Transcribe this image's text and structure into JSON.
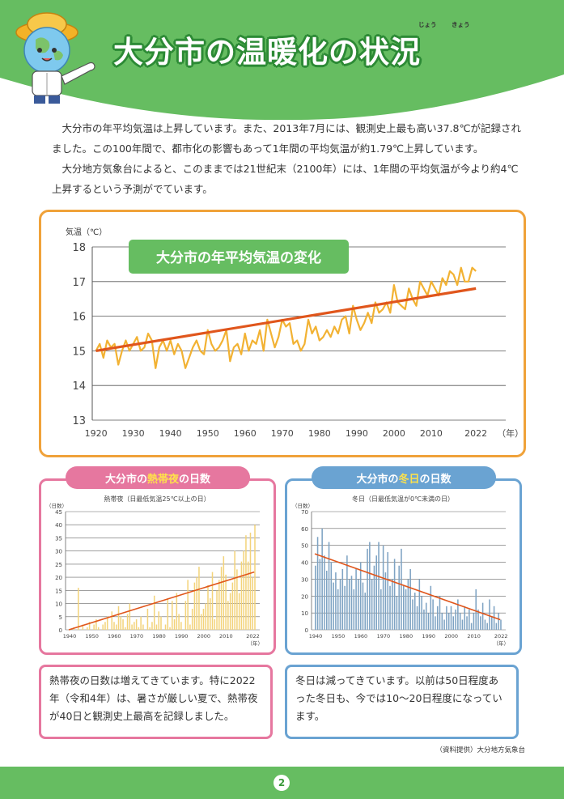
{
  "header": {
    "title": "大分市の温暖化の状況",
    "ruby_jou": "じょう",
    "ruby_kyou": "きょう"
  },
  "intro": {
    "p1": "大分市の年平均気温は上昇しています。また、2013年7月には、観測史上最も高い37.8℃が記録されました。この100年間で、都市化の影響もあって1年間の平均気温が約1.79℃上昇しています。",
    "p2": "大分地方気象台によると、このままでは21世紀末（2100年）には、1年間の平均気温が今より約4℃上昇するという予測がでています。"
  },
  "colors": {
    "green": "#66bd61",
    "orange": "#f0a23a",
    "trend": "#e0561c",
    "pink": "#e6779f",
    "blue": "#6aa3d2",
    "bar_yellow": "#f3d37a",
    "bar_blue": "#7ea3c3"
  },
  "chart_data": [
    {
      "type": "line",
      "title": "大分市の年平均気温の変化",
      "ylabel": "気温（℃）",
      "xunit": "（年）",
      "ylim": [
        13,
        18
      ],
      "yticks": [
        "18",
        "17",
        "16",
        "15",
        "14",
        "13"
      ],
      "xticks": [
        "1920",
        "1930",
        "1940",
        "1950",
        "1960",
        "1970",
        "1980",
        "1990",
        "2000",
        "2010",
        "2022"
      ],
      "x": [
        1920,
        1921,
        1922,
        1923,
        1924,
        1925,
        1926,
        1927,
        1928,
        1929,
        1930,
        1931,
        1932,
        1933,
        1934,
        1935,
        1936,
        1937,
        1938,
        1939,
        1940,
        1941,
        1942,
        1943,
        1944,
        1945,
        1946,
        1947,
        1948,
        1949,
        1950,
        1951,
        1952,
        1953,
        1954,
        1955,
        1956,
        1957,
        1958,
        1959,
        1960,
        1961,
        1962,
        1963,
        1964,
        1965,
        1966,
        1967,
        1968,
        1969,
        1970,
        1971,
        1972,
        1973,
        1974,
        1975,
        1976,
        1977,
        1978,
        1979,
        1980,
        1981,
        1982,
        1983,
        1984,
        1985,
        1986,
        1987,
        1988,
        1989,
        1990,
        1991,
        1992,
        1993,
        1994,
        1995,
        1996,
        1997,
        1998,
        1999,
        2000,
        2001,
        2002,
        2003,
        2004,
        2005,
        2006,
        2007,
        2008,
        2009,
        2010,
        2011,
        2012,
        2013,
        2014,
        2015,
        2016,
        2017,
        2018,
        2019,
        2020,
        2021,
        2022
      ],
      "y": [
        15.0,
        15.2,
        14.8,
        15.3,
        15.1,
        15.2,
        14.6,
        15.0,
        15.3,
        15.0,
        15.2,
        15.4,
        15.0,
        15.1,
        15.5,
        15.3,
        14.5,
        15.1,
        15.3,
        15.0,
        15.3,
        14.9,
        15.2,
        15.0,
        14.5,
        14.8,
        15.1,
        15.3,
        15.0,
        14.9,
        15.6,
        15.2,
        15.0,
        15.1,
        15.3,
        15.6,
        14.7,
        15.1,
        15.2,
        14.9,
        15.5,
        15.0,
        15.3,
        15.2,
        15.6,
        15.0,
        15.9,
        15.5,
        15.1,
        15.4,
        15.9,
        15.7,
        15.8,
        15.2,
        15.3,
        15.0,
        15.2,
        15.9,
        15.5,
        15.7,
        15.3,
        15.4,
        15.6,
        15.4,
        15.7,
        15.5,
        15.9,
        16.0,
        15.5,
        16.3,
        15.9,
        15.6,
        15.8,
        16.1,
        15.8,
        16.4,
        16.1,
        16.2,
        16.4,
        16.1,
        16.9,
        16.4,
        16.3,
        16.2,
        16.8,
        16.5,
        16.3,
        17.0,
        16.8,
        16.6,
        17.0,
        16.8,
        16.6,
        17.1,
        16.9,
        17.3,
        17.2,
        16.9,
        17.4,
        17.0,
        17.0,
        17.4,
        17.3
      ],
      "trend": [
        15.0,
        16.8
      ]
    },
    {
      "type": "bar",
      "title": "大分市の熱帯夜の日数",
      "title_pre": "大分市の",
      "title_hl": "熱帯夜",
      "title_post": "の日数",
      "subtitle": "熱帯夜（日最低気温25℃以上の日）",
      "ylabel": "（日数）",
      "xunit": "（年）",
      "ylim": [
        0,
        45
      ],
      "yticks": [
        "45",
        "40",
        "35",
        "30",
        "25",
        "20",
        "15",
        "10",
        "5",
        "0"
      ],
      "xticks": [
        "1940",
        "1950",
        "1960",
        "1970",
        "1980",
        "1990",
        "2000",
        "2010",
        "2022"
      ],
      "x_start": 1940,
      "values": [
        0,
        0,
        1,
        0,
        16,
        0,
        2,
        0,
        1,
        3,
        0,
        2,
        4,
        1,
        0,
        2,
        3,
        5,
        0,
        7,
        3,
        2,
        9,
        5,
        4,
        1,
        6,
        10,
        2,
        3,
        4,
        1,
        5,
        2,
        0,
        8,
        1,
        3,
        13,
        2,
        7,
        5,
        0,
        2,
        12,
        1,
        11,
        4,
        14,
        6,
        3,
        0,
        11,
        19,
        2,
        8,
        18,
        20,
        24,
        6,
        8,
        10,
        17,
        12,
        22,
        4,
        15,
        19,
        24,
        28,
        21,
        11,
        14,
        18,
        30,
        23,
        14,
        26,
        30,
        36,
        26,
        37,
        20,
        40
      ],
      "trend": [
        0,
        22
      ]
    },
    {
      "type": "bar",
      "title": "大分市の冬日の日数",
      "title_pre": "大分市の",
      "title_hl": "冬日",
      "title_post": "の日数",
      "subtitle": "冬日（日最低気温が0℃未満の日）",
      "ylabel": "（日数）",
      "xunit": "（年）",
      "ylim": [
        0,
        70
      ],
      "yticks": [
        "70",
        "60",
        "50",
        "40",
        "30",
        "20",
        "10",
        "0"
      ],
      "xticks": [
        "1940",
        "1950",
        "1960",
        "1970",
        "1980",
        "1990",
        "2000",
        "2010",
        "2022"
      ],
      "x_start": 1940,
      "values": [
        38,
        55,
        42,
        60,
        44,
        35,
        52,
        40,
        28,
        34,
        24,
        30,
        36,
        26,
        44,
        30,
        32,
        24,
        36,
        30,
        40,
        28,
        22,
        48,
        52,
        30,
        38,
        44,
        52,
        24,
        50,
        34,
        46,
        26,
        30,
        42,
        20,
        38,
        48,
        26,
        24,
        30,
        36,
        18,
        22,
        14,
        30,
        20,
        12,
        16,
        10,
        26,
        18,
        8,
        14,
        20,
        10,
        6,
        14,
        10,
        14,
        8,
        12,
        18,
        10,
        6,
        14,
        8,
        12,
        4,
        10,
        24,
        12,
        8,
        16,
        6,
        4,
        18,
        8,
        14,
        4,
        10,
        6
      ],
      "trend": [
        45,
        6
      ]
    }
  ],
  "text_boxes": {
    "left": "熱帯夜の日数は増えてきています。特に2022年（令和4年）は、暑さが厳しい夏で、熱帯夜が40日と観測史上最高を記録しました。",
    "right": "冬日は減ってきています。以前は50日程度あった冬日も、今では10～20日程度になっています。"
  },
  "source": "（資料提供）大分地方気象台",
  "page_number": "2"
}
